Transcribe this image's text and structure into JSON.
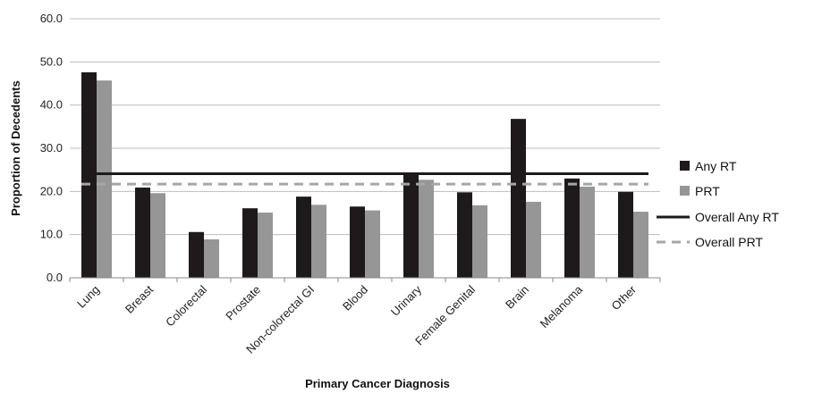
{
  "chart_data": {
    "type": "bar",
    "title": "",
    "xlabel": "Primary Cancer Diagnosis",
    "ylabel": "Proportion of Decedents",
    "ylim": [
      0,
      60
    ],
    "yticks": [
      "0.0",
      "10.0",
      "20.0",
      "30.0",
      "40.0",
      "50.0",
      "60.0"
    ],
    "grid": true,
    "legend_position": "right",
    "categories": [
      "Lung",
      "Breast",
      "Colorectal",
      "Prostate",
      "Non-colorectal GI",
      "Blood",
      "Urinary",
      "Female Genital",
      "Brain",
      "Melanoma",
      "Other"
    ],
    "series": [
      {
        "name": "Any RT",
        "color": "#1e1a1b",
        "values": [
          47.6,
          20.9,
          10.6,
          16.1,
          18.8,
          16.5,
          24.2,
          19.8,
          36.8,
          23.0,
          19.9
        ]
      },
      {
        "name": "PRT",
        "color": "#969696",
        "values": [
          45.7,
          19.6,
          8.9,
          15.1,
          16.9,
          15.6,
          22.7,
          16.8,
          17.6,
          21.1,
          15.3
        ]
      }
    ],
    "reference_lines": [
      {
        "name": "Overall Any RT",
        "value": 24.1,
        "color": "#1e1a1b",
        "style": "solid"
      },
      {
        "name": "Overall PRT",
        "value": 21.7,
        "color": "#a6a6a6",
        "style": "dashed"
      }
    ]
  }
}
